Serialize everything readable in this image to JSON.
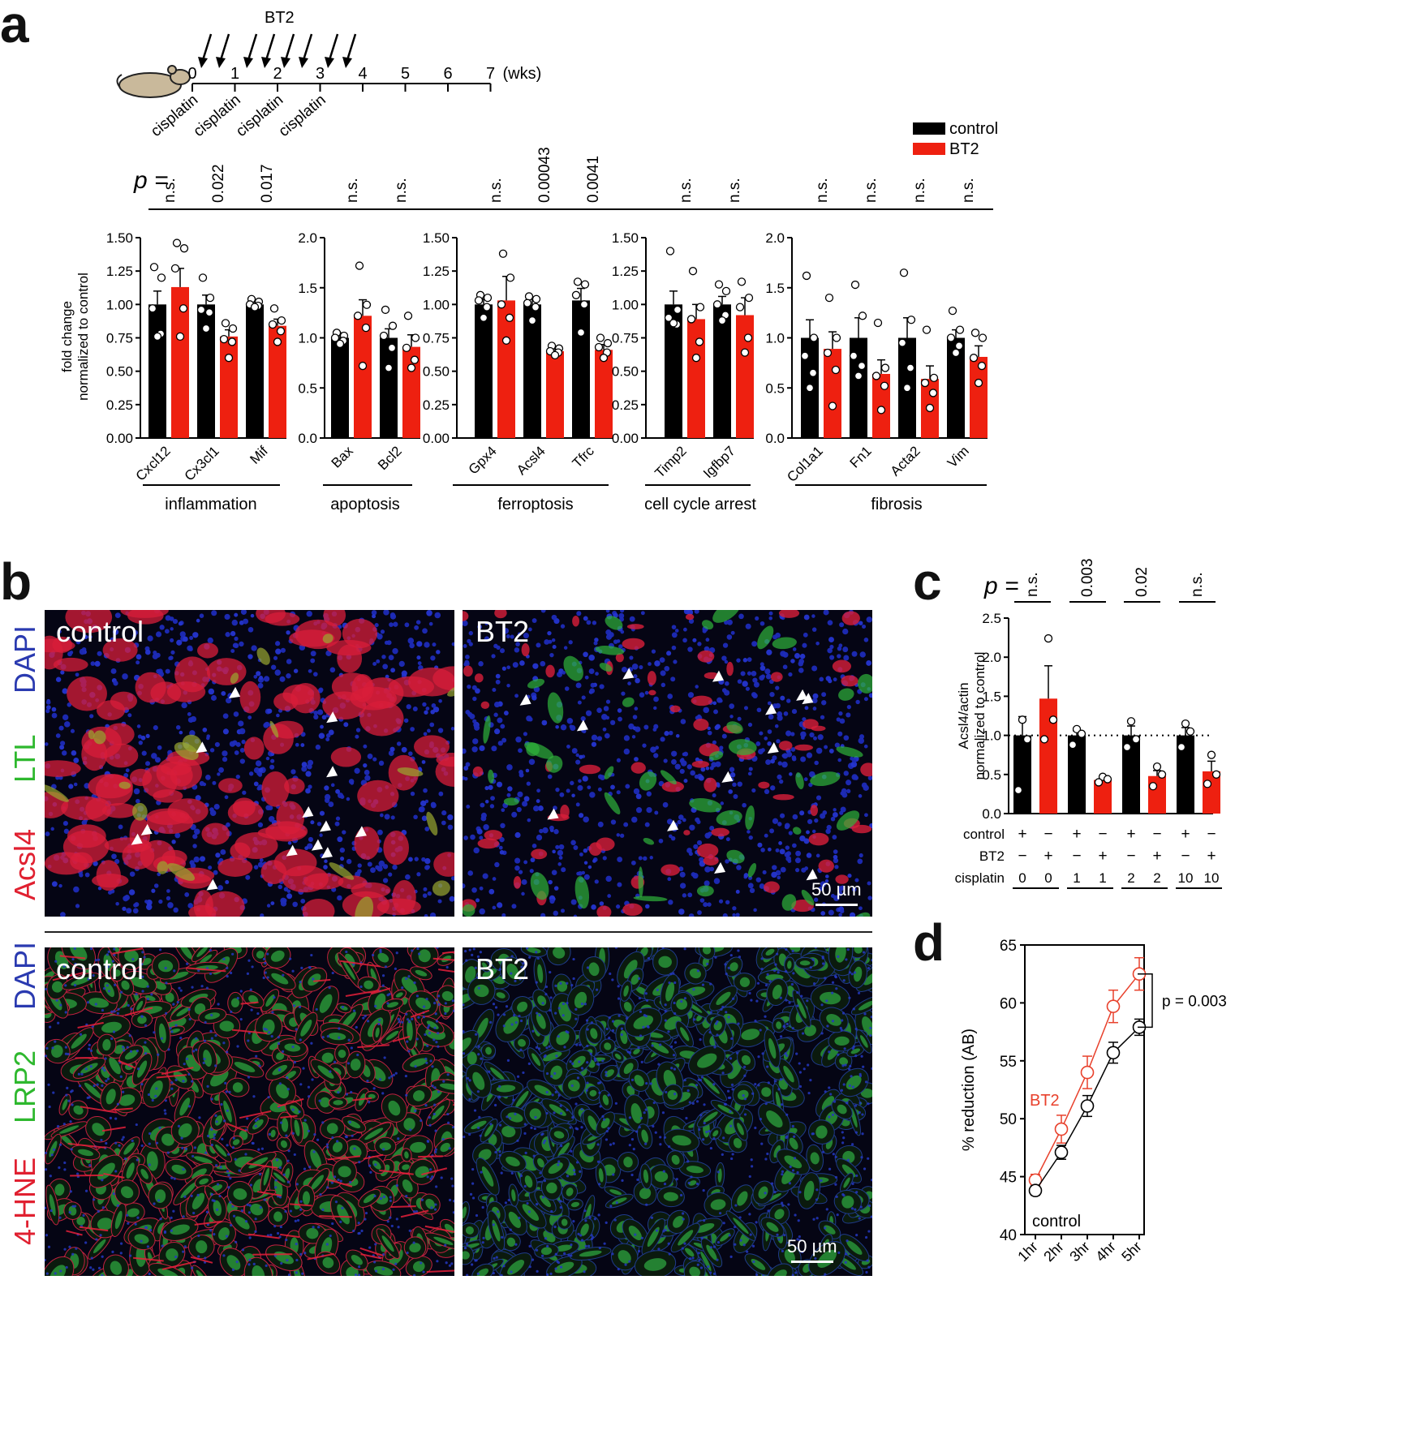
{
  "panels": {
    "a": "a",
    "b": "b",
    "c": "c",
    "d": "d"
  },
  "timeline": {
    "treatment": "BT2",
    "ticks": [
      "0",
      "1",
      "2",
      "3",
      "4",
      "5",
      "6",
      "7"
    ],
    "unit": "(wks)",
    "events": [
      "cisplatin",
      "cisplatin",
      "cisplatin",
      "cisplatin"
    ]
  },
  "legend_a": [
    "control",
    "BT2"
  ],
  "p_label": "p =",
  "fold_change_ylabel_line1": "fold change",
  "fold_change_ylabel_line2": "normalized to control",
  "microscopy": {
    "top_markers": [
      "DAPI",
      "LTL",
      "Acsl4"
    ],
    "bottom_markers": [
      "DAPI",
      "LRP2",
      "4-HNE"
    ],
    "left_title": "control",
    "right_title": "BT2",
    "scalebar": "50 µm"
  },
  "colors": {
    "control": "#000000",
    "bt2": "#ee2010",
    "bt2_line": "#e8412c",
    "dapi": "#2a3ab0",
    "ltl": "#2eb82e",
    "acsl4": "#e02030",
    "hne": "#e02030"
  },
  "chart_data": [
    {
      "id": "a-inflammation",
      "type": "bar",
      "group": "inflammation",
      "categories": [
        "Cxcl12",
        "Cx3cl1",
        "Mif"
      ],
      "p_values": [
        "n.s.",
        "0.022",
        "0.017"
      ],
      "ylim": [
        0,
        1.5
      ],
      "yticks": [
        "0.00",
        "0.25",
        "0.50",
        "0.75",
        "1.00",
        "1.25",
        "1.50"
      ],
      "series": [
        {
          "name": "control",
          "values": [
            1.0,
            1.0,
            1.0
          ],
          "errors": [
            0.1,
            0.07,
            0.03
          ],
          "points": [
            [
              1.28,
              1.2,
              0.97,
              0.78,
              0.76
            ],
            [
              1.2,
              1.05,
              0.96,
              0.94,
              0.82
            ],
            [
              1.04,
              1.02,
              1.0,
              0.99,
              0.98
            ]
          ]
        },
        {
          "name": "BT2",
          "values": [
            1.13,
            0.76,
            0.84
          ],
          "errors": [
            0.14,
            0.05,
            0.05
          ],
          "points": [
            [
              1.46,
              1.42,
              1.27,
              0.97,
              0.76
            ],
            [
              0.86,
              0.82,
              0.74,
              0.72,
              0.6
            ],
            [
              0.97,
              0.88,
              0.85,
              0.8,
              0.72
            ]
          ]
        }
      ]
    },
    {
      "id": "a-apoptosis",
      "type": "bar",
      "group": "apoptosis",
      "categories": [
        "Bax",
        "Bcl2"
      ],
      "p_values": [
        "n.s.",
        "n.s."
      ],
      "ylim": [
        0,
        2.0
      ],
      "yticks": [
        "0.0",
        "0.5",
        "1.0",
        "1.5",
        "2.0"
      ],
      "series": [
        {
          "name": "control",
          "values": [
            1.0,
            1.0
          ],
          "errors": [
            0.05,
            0.09
          ],
          "points": [
            [
              1.05,
              1.02,
              1.0,
              0.97,
              0.94
            ],
            [
              1.28,
              1.12,
              1.02,
              0.9,
              0.7
            ]
          ]
        },
        {
          "name": "BT2",
          "values": [
            1.22,
            0.91
          ],
          "errors": [
            0.16,
            0.12
          ],
          "points": [
            [
              1.72,
              1.33,
              1.22,
              1.1,
              0.72
            ],
            [
              1.22,
              1.0,
              0.9,
              0.78,
              0.7
            ]
          ]
        }
      ]
    },
    {
      "id": "a-ferroptosis",
      "type": "bar",
      "group": "ferroptosis",
      "categories": [
        "Gpx4",
        "Acsl4",
        "Tfrc"
      ],
      "p_values": [
        "n.s.",
        "0.00043",
        "0.0041"
      ],
      "ylim": [
        0,
        1.5
      ],
      "yticks": [
        "0.00",
        "0.25",
        "0.50",
        "0.75",
        "1.00",
        "1.25",
        "1.50"
      ],
      "series": [
        {
          "name": "control",
          "values": [
            1.0,
            1.0,
            1.03
          ],
          "errors": [
            0.04,
            0.05,
            0.09
          ],
          "points": [
            [
              1.07,
              1.05,
              1.03,
              0.98,
              0.9
            ],
            [
              1.06,
              1.04,
              1.01,
              0.98,
              0.88
            ],
            [
              1.17,
              1.15,
              1.07,
              1.0,
              0.79
            ]
          ]
        },
        {
          "name": "BT2",
          "values": [
            1.03,
            0.65,
            0.66
          ],
          "errors": [
            0.18,
            0.02,
            0.04
          ],
          "points": [
            [
              1.38,
              1.2,
              1.0,
              0.9,
              0.73
            ],
            [
              0.69,
              0.67,
              0.65,
              0.64,
              0.62
            ],
            [
              0.75,
              0.71,
              0.68,
              0.64,
              0.6
            ]
          ]
        }
      ]
    },
    {
      "id": "a-cellcycle",
      "type": "bar",
      "group": "cell cycle arrest",
      "categories": [
        "Timp2",
        "Igfbp7"
      ],
      "p_values": [
        "n.s.",
        "n.s."
      ],
      "ylim": [
        0,
        1.5
      ],
      "yticks": [
        "0.00",
        "0.25",
        "0.50",
        "0.75",
        "1.00",
        "1.25",
        "1.50"
      ],
      "series": [
        {
          "name": "control",
          "values": [
            1.0,
            1.0
          ],
          "errors": [
            0.1,
            0.06
          ],
          "points": [
            [
              1.4,
              0.96,
              0.9,
              0.85,
              0.86
            ],
            [
              1.15,
              1.1,
              1.0,
              0.92,
              0.88
            ]
          ]
        },
        {
          "name": "BT2",
          "values": [
            0.89,
            0.92
          ],
          "errors": [
            0.11,
            0.13
          ],
          "points": [
            [
              1.25,
              0.98,
              0.89,
              0.72,
              0.6
            ],
            [
              1.17,
              1.05,
              0.98,
              0.75,
              0.64
            ]
          ]
        }
      ]
    },
    {
      "id": "a-fibrosis",
      "type": "bar",
      "group": "fibrosis",
      "categories": [
        "Col1a1",
        "Fn1",
        "Acta2",
        "Vim"
      ],
      "p_values": [
        "n.s.",
        "n.s.",
        "n.s.",
        "n.s."
      ],
      "ylim": [
        0,
        2.0
      ],
      "yticks": [
        "0.0",
        "0.5",
        "1.0",
        "1.5",
        "2.0"
      ],
      "series": [
        {
          "name": "control",
          "values": [
            1.0,
            1.0,
            1.0,
            1.0
          ],
          "errors": [
            0.18,
            0.2,
            0.2,
            0.08
          ],
          "points": [
            [
              1.62,
              1.0,
              0.82,
              0.65,
              0.5
            ],
            [
              1.53,
              1.22,
              0.82,
              0.72,
              0.62
            ],
            [
              1.65,
              1.18,
              0.95,
              0.7,
              0.5
            ],
            [
              1.27,
              1.08,
              1.0,
              0.92,
              0.85
            ]
          ]
        },
        {
          "name": "BT2",
          "values": [
            0.89,
            0.64,
            0.59,
            0.81
          ],
          "errors": [
            0.17,
            0.14,
            0.13,
            0.11
          ],
          "points": [
            [
              1.4,
              1.0,
              0.85,
              0.68,
              0.32
            ],
            [
              1.15,
              0.7,
              0.62,
              0.52,
              0.28
            ],
            [
              1.08,
              0.6,
              0.55,
              0.45,
              0.3
            ],
            [
              1.05,
              1.0,
              0.8,
              0.72,
              0.55
            ]
          ]
        }
      ]
    },
    {
      "id": "c",
      "type": "bar",
      "ylabel": "Acsl4/actin\nnormalized to control",
      "ylim": [
        0,
        2.5
      ],
      "yticks": [
        "0.0",
        "0.5",
        "1.0",
        "1.5",
        "2.0",
        "2.5"
      ],
      "reference_line": 1.0,
      "p_values": [
        "n.s.",
        "0.003",
        "0.02",
        "n.s."
      ],
      "cisplatin": [
        "0",
        "0",
        "1",
        "1",
        "2",
        "2",
        "10",
        "10"
      ],
      "control_row": [
        "+",
        "−",
        "+",
        "−",
        "+",
        "−",
        "+",
        "−"
      ],
      "bt2_row": [
        "−",
        "+",
        "−",
        "+",
        "−",
        "+",
        "−",
        "+"
      ],
      "row_labels": [
        "control",
        "BT2",
        "cisplatin"
      ],
      "series": [
        {
          "name": "control",
          "values": [
            1.0,
            1.0,
            1.0,
            1.0
          ],
          "errors": [
            0.24,
            0.06,
            0.12,
            0.1
          ],
          "points": [
            [
              1.2,
              0.95,
              0.3
            ],
            [
              1.08,
              1.02,
              0.88
            ],
            [
              1.18,
              0.95,
              0.85
            ],
            [
              1.15,
              1.05,
              0.85
            ]
          ]
        },
        {
          "name": "BT2",
          "values": [
            1.47,
            0.43,
            0.48,
            0.54
          ],
          "errors": [
            0.42,
            0.03,
            0.07,
            0.13
          ],
          "points": [
            [
              2.24,
              1.2,
              0.95
            ],
            [
              0.47,
              0.44,
              0.4
            ],
            [
              0.6,
              0.5,
              0.35
            ],
            [
              0.75,
              0.5,
              0.38
            ]
          ]
        }
      ]
    },
    {
      "id": "d",
      "type": "line",
      "x": [
        "1hr",
        "2hr",
        "3hr",
        "4hr",
        "5hr"
      ],
      "ylabel": "% reduction (AB)",
      "ylim": [
        40,
        65
      ],
      "yticks": [
        "40",
        "45",
        "50",
        "55",
        "60",
        "65"
      ],
      "p_text": "p = 0.003",
      "series": [
        {
          "name": "BT2",
          "values": [
            44.7,
            49.1,
            54.0,
            59.7,
            62.5
          ],
          "errors": [
            0.5,
            1.2,
            1.4,
            1.4,
            1.4
          ]
        },
        {
          "name": "control",
          "values": [
            43.8,
            47.1,
            51.1,
            55.7,
            57.9
          ],
          "errors": [
            0.4,
            0.6,
            0.9,
            0.9,
            0.7
          ]
        }
      ]
    }
  ]
}
